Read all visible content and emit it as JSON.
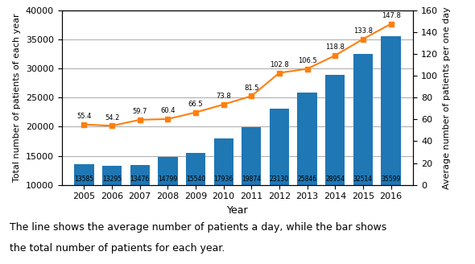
{
  "chart_data": {
    "type": "bar",
    "xlabel": "Year",
    "ylabel": "Total number of patients of each year",
    "y2label": "Average number of patients per one day",
    "x": [
      2005,
      2006,
      2007,
      2008,
      2009,
      2010,
      2011,
      2012,
      2013,
      2014,
      2015,
      2016
    ],
    "xlim": [
      2004.2,
      2016.8
    ],
    "xticks": [
      2005,
      2006,
      2007,
      2008,
      2009,
      2010,
      2011,
      2012,
      2013,
      2014,
      2015,
      2016
    ],
    "ylim": [
      10000,
      40000
    ],
    "yticks": [
      10000,
      15000,
      20000,
      25000,
      30000,
      35000,
      40000
    ],
    "y2lim": [
      0,
      160
    ],
    "y2ticks": [
      0,
      20,
      40,
      60,
      80,
      100,
      120,
      140,
      160
    ],
    "grid": true,
    "series": [
      {
        "type": "bar",
        "data_labels": true,
        "values": [
          13585,
          13295,
          13476,
          14799,
          15540,
          17936,
          19874,
          23130,
          25846,
          28954,
          32514,
          35599
        ]
      },
      {
        "type": "line",
        "axis": "y2",
        "marker": "square",
        "data_labels": true,
        "values": [
          55.4,
          54.2,
          59.7,
          60.4,
          66.5,
          73.8,
          81.5,
          102.8,
          106.5,
          118.8,
          133.8,
          147.8
        ]
      }
    ],
    "annotations": [
      "The line shows the average number of patients a day, while the bar shows",
      "the total number of patients for each year."
    ]
  }
}
